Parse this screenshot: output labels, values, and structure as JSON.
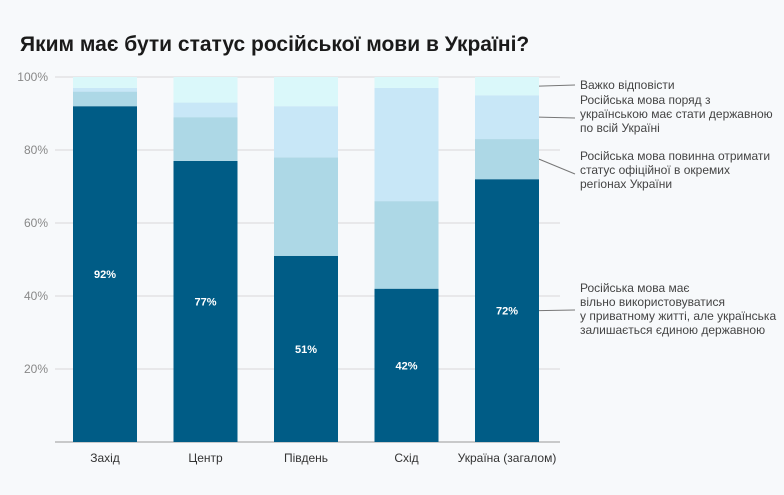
{
  "chart_data": {
    "type": "bar",
    "stacked": true,
    "title": "Яким має бути статус російської мови в Україні?",
    "categories": [
      "Захід",
      "Центр",
      "Південь",
      "Схід",
      "Україна (загалом)"
    ],
    "ylim": [
      0,
      100
    ],
    "yticks": [
      "20%",
      "40%",
      "60%",
      "80%",
      "100%"
    ],
    "ytick_values": [
      20,
      40,
      60,
      80,
      100
    ],
    "grid": true,
    "legend_placement": "right",
    "series": [
      {
        "name": "Російська мова має вільно використовуватися у приватному житті, але українська залишається єдиною державною",
        "values": [
          92,
          77,
          51,
          42,
          72
        ],
        "color": "#005c86",
        "labels": [
          "92%",
          "77%",
          "51%",
          "42%",
          "72%"
        ]
      },
      {
        "name": "Російська мова повинна отримати статус офіційної в окремих регіонах України",
        "values": [
          4,
          12,
          27,
          24,
          11
        ],
        "color": "#add8e6"
      },
      {
        "name": "Російська мова поряд з українською має стати державною по всій Україні",
        "values": [
          1,
          4,
          14,
          31,
          12
        ],
        "color": "#c8e7f7"
      },
      {
        "name": "Важко відповісти",
        "values": [
          3,
          7,
          8,
          3,
          5
        ],
        "color": "#daf8fa"
      }
    ]
  }
}
